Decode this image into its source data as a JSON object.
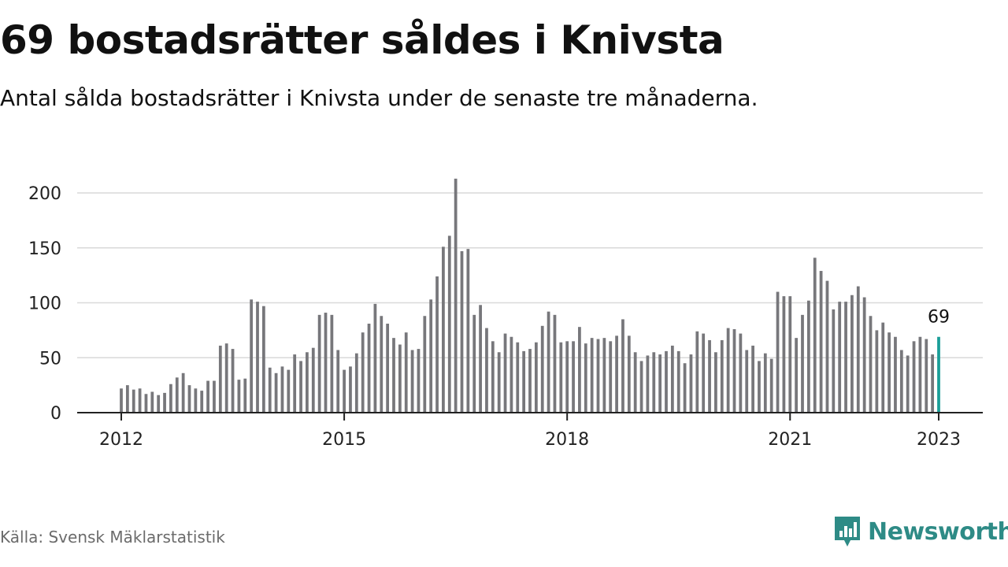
{
  "header": {
    "title": "69 bostadsrätter såldes i Knivsta",
    "subtitle": "Antal sålda bostadsrätter i Knivsta under de senaste tre månaderna."
  },
  "footer": {
    "source": "Källa: Svensk Mäklarstatistik",
    "brand": "Newsworthy"
  },
  "colors": {
    "bar": "#77777b",
    "highlight": "#1a9e98",
    "grid": "#d9d9d9",
    "axis": "#222222",
    "brand": "#2e8b86"
  },
  "chart_data": {
    "type": "bar",
    "title": "69 bostadsrätter såldes i Knivsta",
    "subtitle": "Antal sålda bostadsrätter i Knivsta under de senaste tre månaderna.",
    "xlabel": "",
    "ylabel": "",
    "ylim": [
      0,
      200
    ],
    "yticks": [
      0,
      50,
      100,
      150,
      200
    ],
    "xticks": [
      "2012",
      "2015",
      "2018",
      "2021",
      "2023"
    ],
    "grid": true,
    "start": "2012-01",
    "end": "2023-01",
    "highlight_label": "69",
    "values": [
      22,
      25,
      21,
      22,
      17,
      19,
      16,
      18,
      26,
      32,
      36,
      25,
      22,
      20,
      29,
      29,
      61,
      63,
      58,
      30,
      31,
      103,
      101,
      97,
      41,
      36,
      42,
      39,
      53,
      47,
      55,
      59,
      89,
      91,
      89,
      57,
      39,
      42,
      54,
      73,
      81,
      99,
      88,
      81,
      68,
      62,
      73,
      57,
      58,
      88,
      103,
      124,
      151,
      161,
      213,
      147,
      149,
      89,
      98,
      77,
      65,
      55,
      72,
      69,
      64,
      56,
      58,
      64,
      79,
      92,
      89,
      64,
      65,
      65,
      78,
      63,
      68,
      67,
      68,
      65,
      70,
      85,
      70,
      55,
      47,
      52,
      55,
      53,
      56,
      61,
      56,
      45,
      53,
      74,
      72,
      66,
      55,
      66,
      77,
      76,
      72,
      57,
      61,
      47,
      54,
      49,
      110,
      106,
      106,
      68,
      89,
      102,
      141,
      129,
      120,
      94,
      101,
      101,
      107,
      115,
      105,
      88,
      75,
      82,
      73,
      69,
      57,
      52,
      65,
      69,
      67,
      53,
      69
    ]
  }
}
